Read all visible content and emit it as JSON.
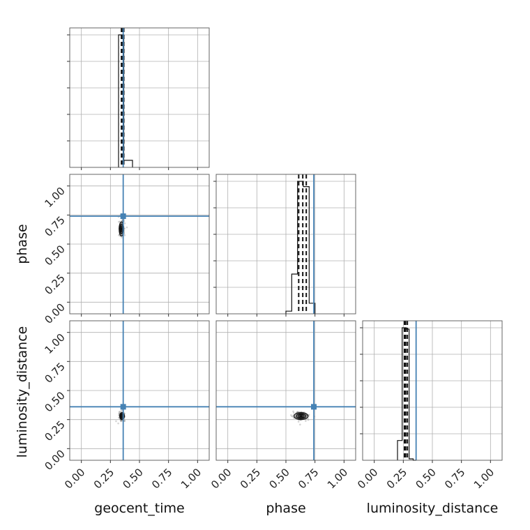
{
  "chart_data": {
    "type": "corner",
    "parameters": [
      "geocent_time",
      "phase",
      "luminosity_distance"
    ],
    "axis_labels": {
      "x": [
        "geocent_time",
        "phase",
        "luminosity_distance"
      ],
      "y": [
        "phase",
        "luminosity_distance"
      ]
    },
    "tick_labels": [
      "0.00",
      "0.25",
      "0.50",
      "0.75",
      "1.00"
    ],
    "ticks": [
      0,
      0.25,
      0.5,
      0.75,
      1.0
    ],
    "lim": [
      -0.1,
      1.1
    ],
    "grid": true,
    "truth_color": "#4682b4",
    "truths": {
      "geocent_time": 0.36,
      "phase": 0.74,
      "luminosity_distance": 0.36
    },
    "histograms": [
      {
        "parameter": "geocent_time",
        "bin_edges": [
          0.32,
          0.365,
          0.44
        ],
        "counts": [
          0.94,
          0.05
        ],
        "quantiles": [
          0.345,
          0.355,
          0.365
        ]
      },
      {
        "parameter": "phase",
        "bin_edges": [
          0.5,
          0.55,
          0.6,
          0.65,
          0.7,
          0.75
        ],
        "counts": [
          0.02,
          0.3,
          1.0,
          0.96,
          0.08
        ],
        "quantiles": [
          0.61,
          0.645,
          0.675
        ]
      },
      {
        "parameter": "luminosity_distance",
        "bin_edges": [
          0.2,
          0.24,
          0.275,
          0.3,
          0.335,
          0.36
        ],
        "counts": [
          0.14,
          0.94,
          0.93,
          0.01,
          0.0
        ],
        "quantiles": [
          0.26,
          0.27,
          0.285
        ]
      }
    ],
    "contours_2d": [
      {
        "x": "geocent_time",
        "y": "phase",
        "center": [
          0.345,
          0.63
        ],
        "spread": [
          0.02,
          0.06
        ]
      },
      {
        "x": "geocent_time",
        "y": "luminosity_distance",
        "center": [
          0.35,
          0.28
        ],
        "spread": [
          0.02,
          0.03
        ]
      },
      {
        "x": "phase",
        "y": "luminosity_distance",
        "center": [
          0.63,
          0.28
        ],
        "spread": [
          0.06,
          0.03
        ]
      }
    ]
  }
}
